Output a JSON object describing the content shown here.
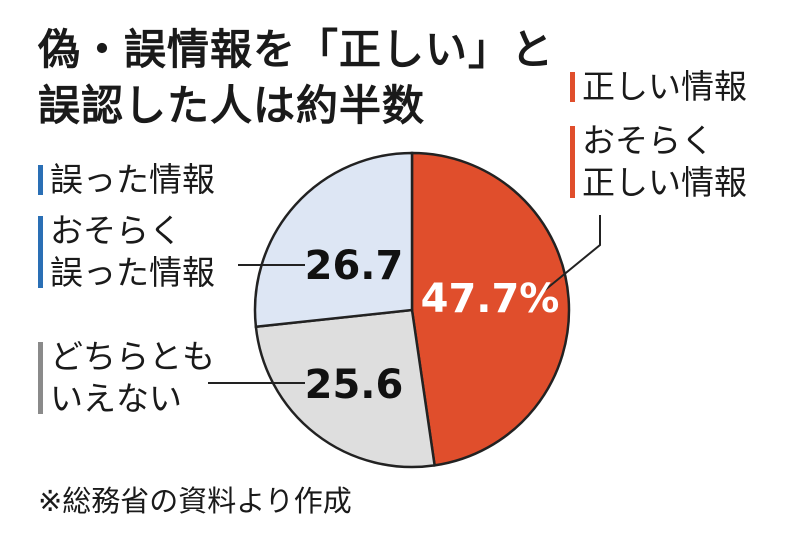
{
  "title_lines": [
    "偽・誤情報を「正しい」と",
    "誤認した人は約半数"
  ],
  "note": "※総務省の資料より作成",
  "colors": {
    "correct": "#e04e2c",
    "wrong": "#dde6f4",
    "neither": "#dedede",
    "wrong_bar": "#2a6fb5",
    "neither_bar": "#8a8a8a",
    "outline": "#222222"
  },
  "chart_data": {
    "type": "pie",
    "slices": [
      {
        "key": "correct",
        "value": 47.7,
        "value_label": "47.7%",
        "legend": [
          "正しい情報",
          "おそらく正しい情報"
        ],
        "legend_lines": [
          [
            "正しい情報"
          ],
          [
            "おそらく",
            "正しい情報"
          ]
        ]
      },
      {
        "key": "neither",
        "value": 25.6,
        "value_label": "25.6",
        "legend": [
          "どちらともいえない"
        ],
        "legend_lines": [
          [
            "どちらとも",
            "いえない"
          ]
        ]
      },
      {
        "key": "wrong",
        "value": 26.7,
        "value_label": "26.7",
        "legend": [
          "誤った情報",
          "おそらく誤った情報"
        ],
        "legend_lines": [
          [
            "誤った情報"
          ],
          [
            "おそらく",
            "誤った情報"
          ]
        ]
      }
    ]
  }
}
